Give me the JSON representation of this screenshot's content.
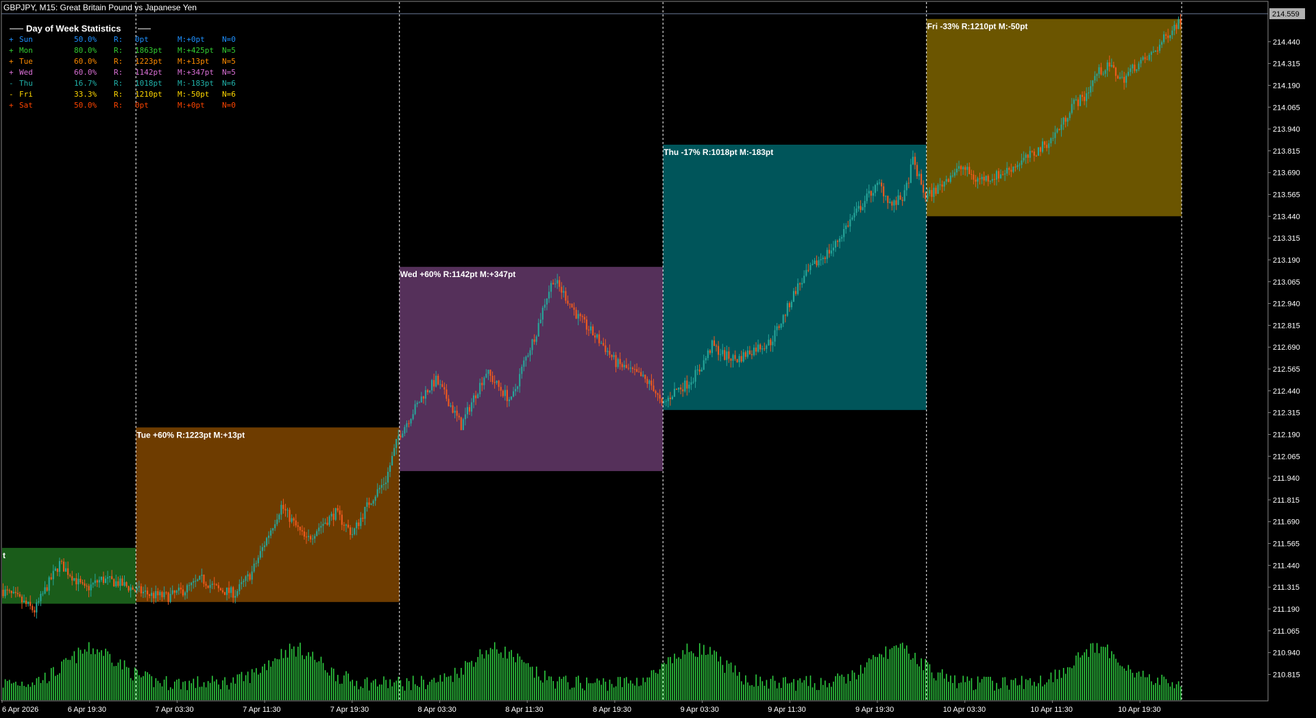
{
  "header": {
    "title": "GBPJPY, M15:  Great Britain Pound vs Japanese Yen"
  },
  "price_axis": {
    "current_price": "214.559",
    "labels": [
      "214.440",
      "214.315",
      "214.190",
      "214.065",
      "213.940",
      "213.815",
      "213.690",
      "213.565",
      "213.440",
      "213.315",
      "213.190",
      "213.065",
      "212.940",
      "212.815",
      "212.690",
      "212.565",
      "212.440",
      "212.315",
      "212.190",
      "212.065",
      "211.940",
      "211.815",
      "211.690",
      "211.565",
      "211.440",
      "211.315",
      "211.190",
      "211.065",
      "210.940",
      "210.815"
    ]
  },
  "time_axis": {
    "labels": [
      "6 Apr 2026",
      "6 Apr 19:30",
      "7 Apr 03:30",
      "7 Apr 11:30",
      "7 Apr 19:30",
      "8 Apr 03:30",
      "8 Apr 11:30",
      "8 Apr 19:30",
      "9 Apr 03:30",
      "9 Apr 11:30",
      "9 Apr 19:30",
      "10 Apr 03:30",
      "10 Apr 11:30",
      "10 Apr 19:30"
    ]
  },
  "stats_panel": {
    "title": "Day of Week Statistics",
    "rows": [
      {
        "sign": "+",
        "day": "Sun",
        "pct": "50.0%",
        "r_label": "R:",
        "r": "0pt",
        "m": "M:+0pt",
        "n": "N=0",
        "color": "#1e90ff"
      },
      {
        "sign": "+",
        "day": "Mon",
        "pct": "80.0%",
        "r_label": "R:",
        "r": "1863pt",
        "m": "M:+425pt",
        "n": "N=5",
        "color": "#32cd32"
      },
      {
        "sign": "+",
        "day": "Tue",
        "pct": "60.0%",
        "r_label": "R:",
        "r": "1223pt",
        "m": "M:+13pt",
        "n": "N=5",
        "color": "#ff8c00"
      },
      {
        "sign": "+",
        "day": "Wed",
        "pct": "60.0%",
        "r_label": "R:",
        "r": "1142pt",
        "m": "M:+347pt",
        "n": "N=5",
        "color": "#da70d6"
      },
      {
        "sign": "-",
        "day": "Thu",
        "pct": "16.7%",
        "r_label": "R:",
        "r": "1018pt",
        "m": "M:-183pt",
        "n": "N=6",
        "color": "#20b2aa"
      },
      {
        "sign": "-",
        "day": "Fri",
        "pct": "33.3%",
        "r_label": "R:",
        "r": "1210pt",
        "m": "M:-50pt",
        "n": "N=6",
        "color": "#ffd700"
      },
      {
        "sign": "+",
        "day": "Sat",
        "pct": "50.0%",
        "r_label": "R:",
        "r": "0pt",
        "m": "M:+0pt",
        "n": "N=0",
        "color": "#ff4500"
      }
    ]
  },
  "day_boxes": [
    {
      "day": "Mon",
      "label": "t",
      "color": "#1a5c1a",
      "price_high": 211.54,
      "price_low": 211.22,
      "time_start": 0,
      "time_end": 64
    },
    {
      "day": "Tue",
      "label": "Tue +60%  R:1223pt  M:+13pt",
      "color": "#6e3c00",
      "price_high": 212.23,
      "price_low": 211.23,
      "time_start": 64,
      "time_end": 190
    },
    {
      "day": "Wed",
      "label": "Wed +60%  R:1142pt  M:+347pt",
      "color": "#55305a",
      "price_high": 213.15,
      "price_low": 211.98,
      "time_start": 190,
      "time_end": 316
    },
    {
      "day": "Thu",
      "label": "Thu -17%  R:1018pt  M:-183pt",
      "color": "#00555a",
      "price_high": 213.85,
      "price_low": 212.33,
      "time_start": 316,
      "time_end": 442
    },
    {
      "day": "Fri",
      "label": "Fri -33%  R:1210pt  M:-50pt",
      "color": "#6b5500",
      "price_high": 214.57,
      "price_low": 213.44,
      "time_start": 442,
      "time_end": 564
    }
  ],
  "colors": {
    "background": "#000000",
    "bull": "#26a69a",
    "bear": "#ef5a1e",
    "volume": "#2ecc40",
    "grid_separator": "#ffffff",
    "axis_text": "#ffffff"
  },
  "chart_data": {
    "type": "candlestick",
    "symbol": "GBPJPY",
    "timeframe": "M15",
    "ylim": [
      210.75,
      214.62
    ],
    "price_path": [
      [
        0,
        211.3
      ],
      [
        8,
        211.25
      ],
      [
        16,
        211.18
      ],
      [
        22,
        211.32
      ],
      [
        28,
        211.45
      ],
      [
        34,
        211.38
      ],
      [
        40,
        211.3
      ],
      [
        48,
        211.36
      ],
      [
        56,
        211.34
      ],
      [
        64,
        211.3
      ],
      [
        72,
        211.27
      ],
      [
        80,
        211.26
      ],
      [
        88,
        211.3
      ],
      [
        96,
        211.36
      ],
      [
        104,
        211.3
      ],
      [
        112,
        211.28
      ],
      [
        120,
        211.4
      ],
      [
        128,
        211.62
      ],
      [
        134,
        211.78
      ],
      [
        140,
        211.68
      ],
      [
        146,
        211.58
      ],
      [
        152,
        211.66
      ],
      [
        160,
        211.74
      ],
      [
        168,
        211.62
      ],
      [
        176,
        211.8
      ],
      [
        184,
        211.93
      ],
      [
        190,
        212.18
      ],
      [
        196,
        212.3
      ],
      [
        202,
        212.42
      ],
      [
        208,
        212.5
      ],
      [
        214,
        212.38
      ],
      [
        220,
        212.24
      ],
      [
        226,
        212.4
      ],
      [
        232,
        212.55
      ],
      [
        238,
        212.46
      ],
      [
        244,
        212.38
      ],
      [
        250,
        212.6
      ],
      [
        256,
        212.78
      ],
      [
        260,
        212.95
      ],
      [
        264,
        213.08
      ],
      [
        270,
        212.98
      ],
      [
        276,
        212.86
      ],
      [
        282,
        212.78
      ],
      [
        288,
        212.7
      ],
      [
        294,
        212.6
      ],
      [
        300,
        212.56
      ],
      [
        306,
        212.52
      ],
      [
        312,
        212.46
      ],
      [
        316,
        212.35
      ],
      [
        322,
        212.44
      ],
      [
        328,
        212.48
      ],
      [
        334,
        212.56
      ],
      [
        340,
        212.7
      ],
      [
        346,
        212.64
      ],
      [
        352,
        212.62
      ],
      [
        360,
        212.68
      ],
      [
        368,
        212.72
      ],
      [
        374,
        212.86
      ],
      [
        380,
        213.02
      ],
      [
        386,
        213.12
      ],
      [
        392,
        213.2
      ],
      [
        398,
        213.26
      ],
      [
        404,
        213.38
      ],
      [
        410,
        213.48
      ],
      [
        416,
        213.58
      ],
      [
        420,
        213.62
      ],
      [
        426,
        213.5
      ],
      [
        432,
        213.56
      ],
      [
        436,
        213.76
      ],
      [
        442,
        213.55
      ],
      [
        448,
        213.6
      ],
      [
        454,
        213.68
      ],
      [
        460,
        213.72
      ],
      [
        466,
        213.65
      ],
      [
        472,
        213.66
      ],
      [
        478,
        213.68
      ],
      [
        486,
        213.74
      ],
      [
        494,
        213.8
      ],
      [
        502,
        213.88
      ],
      [
        508,
        213.98
      ],
      [
        512,
        214.08
      ],
      [
        518,
        214.12
      ],
      [
        524,
        214.26
      ],
      [
        530,
        214.3
      ],
      [
        536,
        214.22
      ],
      [
        542,
        214.3
      ],
      [
        548,
        214.34
      ],
      [
        554,
        214.42
      ],
      [
        560,
        214.52
      ],
      [
        564,
        214.56
      ]
    ],
    "volume_range": [
      0,
      1
    ]
  }
}
